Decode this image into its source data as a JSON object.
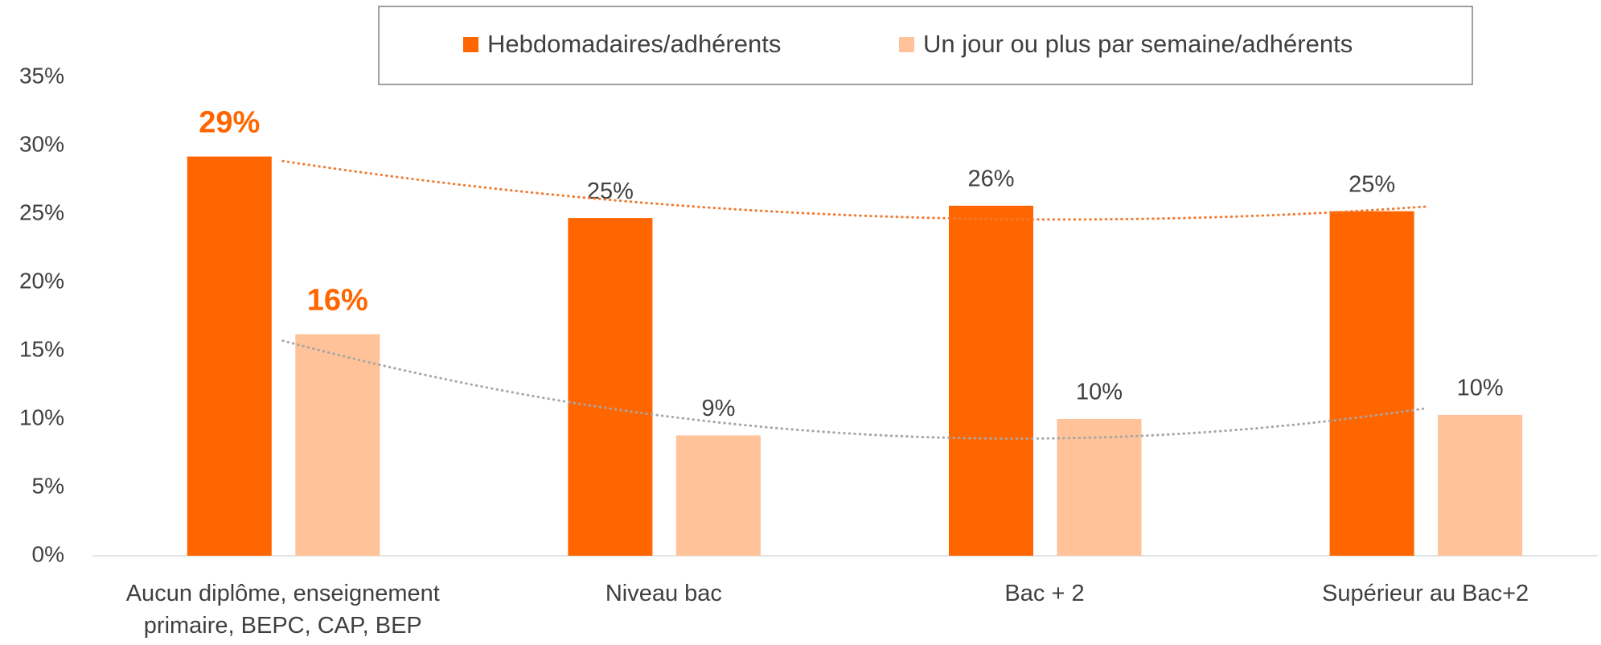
{
  "chart_data": {
    "type": "bar",
    "categories": [
      "Aucun diplôme, enseignement primaire, BEPC, CAP, BEP",
      "Niveau bac",
      "Bac + 2",
      "Supérieur au Bac+2"
    ],
    "series": [
      {
        "name": "Hebdomadaires/adhérents",
        "color": "#ff6600",
        "trend_color": "#f07a30",
        "values": [
          29.2,
          24.7,
          25.6,
          25.2
        ],
        "value_labels": [
          "29%",
          "25%",
          "26%",
          "25%"
        ]
      },
      {
        "name": "Un jour ou plus par semaine/adhérents",
        "color": "#ffc299",
        "trend_color": "#a6a6a6",
        "values": [
          16.2,
          8.8,
          10.0,
          10.3
        ],
        "value_labels": [
          "16%",
          "9%",
          "10%",
          "10%"
        ]
      }
    ],
    "ylim": [
      0,
      35
    ],
    "yticks": [
      {
        "value": 0,
        "label": "0%"
      },
      {
        "value": 5,
        "label": "5%"
      },
      {
        "value": 10,
        "label": "10%"
      },
      {
        "value": 15,
        "label": "15%"
      },
      {
        "value": 20,
        "label": "20%"
      },
      {
        "value": 25,
        "label": "25%"
      },
      {
        "value": 30,
        "label": "30%"
      },
      {
        "value": 35,
        "label": "35%"
      }
    ],
    "trendline": "polynomial",
    "legend": "top",
    "grid": false
  }
}
